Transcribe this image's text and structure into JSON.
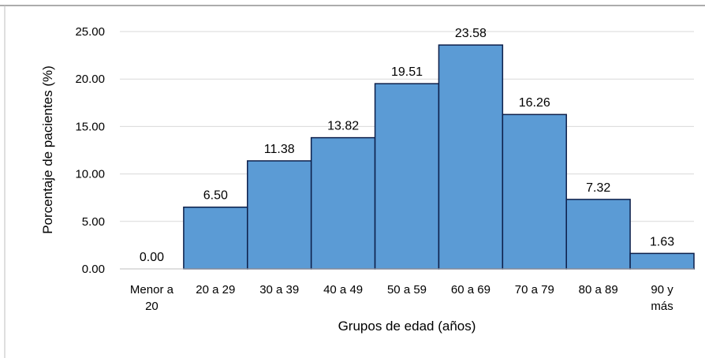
{
  "chart_data": {
    "type": "bar",
    "title": "",
    "xlabel": "Grupos de edad (años)",
    "ylabel": "Porcentaje de pacientes (%)",
    "ylim": [
      0,
      25
    ],
    "yticks": [
      "0.00",
      "5.00",
      "10.00",
      "15.00",
      "20.00",
      "25.00"
    ],
    "categories": [
      [
        "Menor a",
        "20"
      ],
      [
        "20 a 29"
      ],
      [
        "30 a 39"
      ],
      [
        "40 a 49"
      ],
      [
        "50 a 59"
      ],
      [
        "60 a 69"
      ],
      [
        "70 a 79"
      ],
      [
        "80 a 89"
      ],
      [
        "90 y",
        "más"
      ]
    ],
    "values": [
      0.0,
      6.5,
      11.38,
      13.82,
      19.51,
      23.58,
      16.26,
      7.32,
      1.63
    ],
    "data_labels": [
      "0.00",
      "6.50",
      "11.38",
      "13.82",
      "19.51",
      "23.58",
      "16.26",
      "7.32",
      "1.63"
    ],
    "grid": true,
    "legend": "none",
    "colors": {
      "bar_fill": "#5b9bd5",
      "bar_stroke": "#0d1f4a",
      "grid": "#d9d9d9"
    }
  }
}
